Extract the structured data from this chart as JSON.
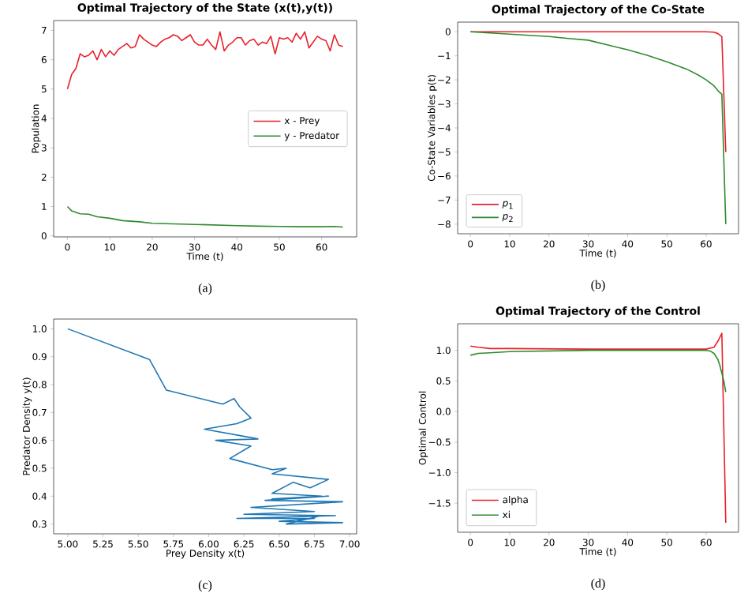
{
  "chart_data": [
    {
      "type": "line",
      "title": "Optimal Trajectory of the State (x(t),y(t))",
      "xlabel": "Time (t)",
      "ylabel": "Population",
      "annotations": [
        "(a)"
      ],
      "legend": "center right",
      "xlim": [
        -3.25,
        68.25
      ],
      "ylim": [
        -0.035,
        7.335
      ],
      "xticks": [
        0,
        10,
        20,
        30,
        40,
        50,
        60
      ],
      "yticks": [
        0,
        1,
        2,
        3,
        4,
        5,
        6,
        7
      ],
      "series": [
        {
          "name": "x - Prey",
          "color": "#e8202a",
          "x": [
            0,
            1,
            2,
            3,
            4,
            5,
            6,
            7,
            8,
            9,
            10,
            11,
            12,
            13,
            14,
            15,
            16,
            17,
            18,
            19,
            20,
            21,
            22,
            23,
            24,
            25,
            26,
            27,
            28,
            29,
            30,
            31,
            32,
            33,
            34,
            35,
            36,
            37,
            38,
            39,
            40,
            41,
            42,
            43,
            44,
            45,
            46,
            47,
            48,
            49,
            50,
            51,
            52,
            53,
            54,
            55,
            56,
            57,
            58,
            59,
            60,
            61,
            62,
            63,
            64,
            65
          ],
          "values": [
            5.0,
            5.5,
            5.7,
            6.2,
            6.1,
            6.15,
            6.3,
            6.0,
            6.35,
            6.1,
            6.3,
            6.15,
            6.35,
            6.45,
            6.55,
            6.4,
            6.45,
            6.85,
            6.7,
            6.6,
            6.5,
            6.45,
            6.6,
            6.7,
            6.75,
            6.85,
            6.8,
            6.65,
            6.75,
            6.85,
            6.6,
            6.5,
            6.5,
            6.7,
            6.5,
            6.35,
            6.95,
            6.3,
            6.5,
            6.6,
            6.75,
            6.75,
            6.5,
            6.65,
            6.7,
            6.5,
            6.6,
            6.55,
            6.8,
            6.2,
            6.75,
            6.7,
            6.75,
            6.6,
            6.9,
            6.7,
            6.95,
            6.4,
            6.6,
            6.8,
            6.7,
            6.65,
            6.3,
            6.85,
            6.5,
            6.45
          ]
        },
        {
          "name": "y - Predator",
          "color": "#2e8b2e",
          "x": [
            0,
            1,
            3,
            5,
            7,
            10,
            13,
            17,
            20,
            25,
            30,
            35,
            40,
            45,
            50,
            55,
            60,
            63,
            65
          ],
          "values": [
            1.0,
            0.85,
            0.75,
            0.74,
            0.65,
            0.6,
            0.52,
            0.48,
            0.43,
            0.41,
            0.39,
            0.37,
            0.35,
            0.33,
            0.32,
            0.31,
            0.31,
            0.32,
            0.3
          ]
        }
      ]
    },
    {
      "type": "line",
      "title": "Optimal Trajectory of the Co-State",
      "xlabel": "Time (t)",
      "ylabel": "Co-State Variables p(t)",
      "annotations": [
        "(b)"
      ],
      "legend": "bottom left",
      "xlim": [
        -3.25,
        68.25
      ],
      "ylim": [
        -8.4,
        0.4
      ],
      "xticks": [
        0,
        10,
        20,
        30,
        40,
        50,
        60
      ],
      "yticks": [
        0,
        {
          "value": -1,
          "label": "−1"
        },
        {
          "value": -2,
          "label": "−2"
        },
        {
          "value": -3,
          "label": "−3"
        },
        {
          "value": -4,
          "label": "−4"
        },
        {
          "value": -5,
          "label": "−5"
        },
        {
          "value": -6,
          "label": "−6"
        },
        {
          "value": -7,
          "label": "−7"
        },
        {
          "value": -8,
          "label": "−8"
        }
      ],
      "series": [
        {
          "name": "*p*$_{1}$",
          "color": "#e8202a",
          "x": [
            0,
            10,
            20,
            30,
            40,
            50,
            60,
            62,
            63,
            64,
            65
          ],
          "values": [
            0,
            0,
            0,
            0,
            0,
            0,
            0,
            -0.02,
            -0.08,
            -0.2,
            -5.0
          ]
        },
        {
          "name": "*p*$_{2}$",
          "color": "#2e8b2e",
          "x": [
            0,
            5,
            10,
            15,
            20,
            25,
            30,
            35,
            40,
            45,
            50,
            55,
            58,
            60,
            62,
            63,
            64,
            65
          ],
          "values": [
            0,
            -0.05,
            -0.1,
            -0.15,
            -0.2,
            -0.28,
            -0.35,
            -0.55,
            -0.75,
            -0.98,
            -1.25,
            -1.55,
            -1.8,
            -2.0,
            -2.25,
            -2.45,
            -2.6,
            -8.0
          ]
        }
      ]
    },
    {
      "type": "line",
      "xlabel": "Prey Density x(t)",
      "ylabel": "Predator Density y(t)",
      "annotations": [
        "(c)"
      ],
      "xlim": [
        4.9,
        7.05
      ],
      "ylim": [
        0.265,
        1.035
      ],
      "xticks": [
        {
          "value": 5,
          "label": "5.00"
        },
        5.25,
        {
          "value": 5.5,
          "label": "5.50"
        },
        5.75,
        {
          "value": 6,
          "label": "6.00"
        },
        6.25,
        {
          "value": 6.5,
          "label": "6.50"
        },
        6.75,
        {
          "value": 7,
          "label": "7.00"
        }
      ],
      "yticks": [
        0.3,
        0.4,
        0.5,
        0.6,
        0.7,
        0.8,
        0.9,
        {
          "value": 1,
          "label": "1.0"
        }
      ],
      "series": [
        {
          "color": "#1f77b4",
          "x": [
            5.0,
            5.58,
            5.7,
            6.1,
            6.18,
            6.22,
            6.3,
            6.2,
            5.97,
            6.3,
            6.35,
            6.05,
            6.3,
            6.15,
            6.45,
            6.55,
            6.45,
            6.85,
            6.72,
            6.6,
            6.45,
            6.8,
            6.45,
            6.85,
            6.4,
            6.95,
            6.3,
            6.75,
            6.25,
            6.9,
            6.2,
            6.75,
            6.5,
            6.95,
            6.55,
            6.8,
            6.3
          ],
          "values": [
            1.0,
            0.89,
            0.78,
            0.73,
            0.75,
            0.72,
            0.68,
            0.66,
            0.64,
            0.61,
            0.605,
            0.6,
            0.58,
            0.535,
            0.495,
            0.5,
            0.48,
            0.46,
            0.43,
            0.45,
            0.41,
            0.4,
            0.39,
            0.4,
            0.385,
            0.38,
            0.36,
            0.345,
            0.335,
            0.33,
            0.32,
            0.32,
            0.31,
            0.305,
            0.3,
            0.33,
            0.32
          ]
        }
      ]
    },
    {
      "type": "line",
      "title": "Optimal Trajectory of the Control",
      "xlabel": "Time (t)",
      "ylabel": "Optimal Control",
      "annotations": [
        "(d)"
      ],
      "legend": "bottom left",
      "xlim": [
        -3.25,
        68.25
      ],
      "ylim": [
        -1.975,
        1.435
      ],
      "xticks": [
        0,
        10,
        20,
        30,
        40,
        50,
        60
      ],
      "yticks": [
        {
          "value": -1.5,
          "label": "−1.5"
        },
        {
          "value": -1,
          "label": "−1.0"
        },
        {
          "value": -0.5,
          "label": "−0.5"
        },
        {
          "value": 0,
          "label": "0.0"
        },
        0.5,
        {
          "value": 1,
          "label": "1.0"
        }
      ],
      "series": [
        {
          "name": "alpha",
          "color": "#e8202a",
          "x": [
            0,
            2,
            5,
            10,
            30,
            60,
            62,
            63,
            64,
            65
          ],
          "values": [
            1.07,
            1.05,
            1.03,
            1.03,
            1.02,
            1.02,
            1.05,
            1.15,
            1.28,
            -1.82
          ]
        },
        {
          "name": "xi",
          "color": "#2e8b2e",
          "x": [
            0,
            2,
            5,
            10,
            30,
            60,
            61,
            62,
            63,
            63.5,
            64.5,
            65
          ],
          "values": [
            0.92,
            0.95,
            0.96,
            0.98,
            1.0,
            1.0,
            0.99,
            0.95,
            0.85,
            0.75,
            0.5,
            0.32
          ]
        }
      ]
    }
  ]
}
